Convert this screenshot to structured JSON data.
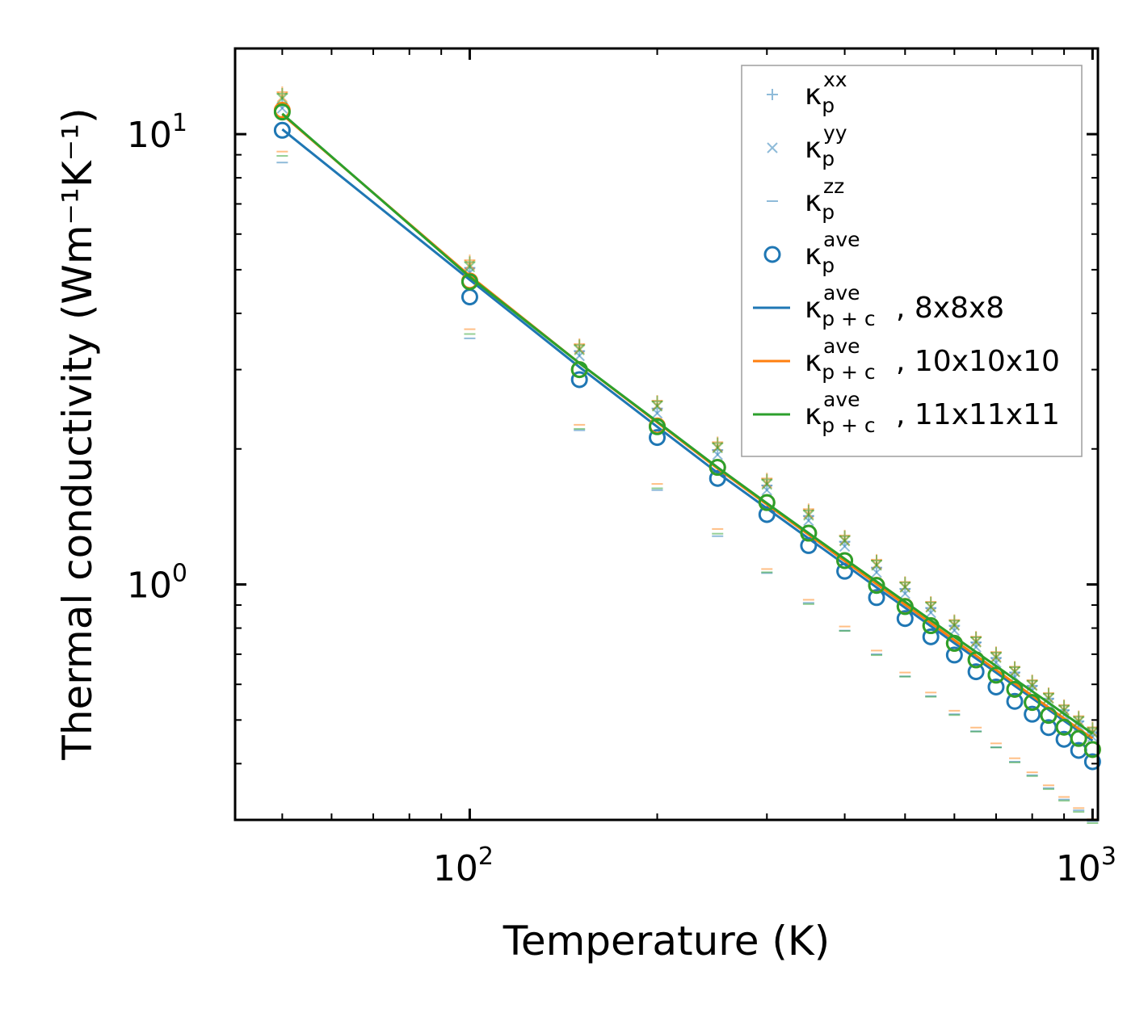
{
  "chart_data": {
    "type": "scatter",
    "title": "",
    "xlabel": "Temperature (K)",
    "ylabel": "Thermal conductivity (Wm⁻¹K⁻¹)",
    "xscale": "log",
    "yscale": "log",
    "xlim": [
      42,
      1020
    ],
    "ylim": [
      0.3,
      15.5
    ],
    "xticks": [
      {
        "base": "10",
        "exp": "2",
        "value": 100
      },
      {
        "base": "10",
        "exp": "3",
        "value": 1000
      }
    ],
    "yticks": [
      {
        "base": "10",
        "exp": "0",
        "value": 1
      },
      {
        "base": "10",
        "exp": "1",
        "value": 10
      }
    ],
    "legend_position": "upper right",
    "colors": {
      "blue": "#1f77b4",
      "orange": "#ff7f0e",
      "green": "#2ca02c"
    },
    "x": [
      50,
      100,
      150,
      200,
      250,
      300,
      350,
      400,
      450,
      500,
      550,
      600,
      650,
      700,
      750,
      800,
      850,
      900,
      950,
      1000
    ],
    "series": [
      {
        "name": "8x8x8",
        "color": "#1f77b4",
        "ave": [
          10.2,
          4.35,
          2.85,
          2.12,
          1.72,
          1.43,
          1.22,
          1.07,
          0.935,
          0.84,
          0.765,
          0.697,
          0.64,
          0.592,
          0.55,
          0.515,
          0.481,
          0.453,
          0.428,
          0.404
        ],
        "xx": [
          11.7,
          5.05,
          3.3,
          2.46,
          1.99,
          1.66,
          1.42,
          1.245,
          1.09,
          0.978,
          0.887,
          0.81,
          0.744,
          0.687,
          0.638,
          0.596,
          0.558,
          0.526,
          0.497,
          0.47
        ],
        "zz": [
          8.65,
          3.52,
          2.2,
          1.62,
          1.28,
          1.06,
          0.91,
          0.79,
          0.7,
          0.625,
          0.565,
          0.515,
          0.472,
          0.435,
          0.404,
          0.377,
          0.353,
          0.333,
          0.315,
          0.298
        ],
        "fit": [
          10.25,
          4.75,
          3.04,
          2.24,
          1.77,
          1.475,
          1.265,
          1.108,
          0.985,
          0.888,
          0.808,
          0.741,
          0.685,
          0.637,
          0.595,
          0.559,
          0.527,
          0.498,
          0.473,
          0.45
        ]
      },
      {
        "name": "10x10x10",
        "color": "#ff7f0e",
        "ave": [
          11.3,
          4.72,
          3.0,
          2.25,
          1.82,
          1.52,
          1.3,
          1.13,
          0.996,
          0.894,
          0.81,
          0.74,
          0.68,
          0.629,
          0.585,
          0.547,
          0.512,
          0.482,
          0.455,
          0.43
        ],
        "xx": [
          12.4,
          5.25,
          3.42,
          2.56,
          2.07,
          1.72,
          1.47,
          1.285,
          1.135,
          1.013,
          0.915,
          0.834,
          0.766,
          0.708,
          0.657,
          0.613,
          0.574,
          0.54,
          0.51,
          0.482
        ],
        "zz": [
          9.3,
          3.75,
          2.3,
          1.7,
          1.35,
          1.1,
          0.94,
          0.82,
          0.725,
          0.648,
          0.585,
          0.533,
          0.489,
          0.451,
          0.418,
          0.389,
          0.364,
          0.343,
          0.324,
          0.306
        ],
        "fit": [
          11.05,
          4.85,
          3.1,
          2.29,
          1.81,
          1.505,
          1.29,
          1.128,
          1.002,
          0.902,
          0.821,
          0.752,
          0.695,
          0.646,
          0.603,
          0.566,
          0.533,
          0.504,
          0.478,
          0.455
        ]
      },
      {
        "name": "11x11x11",
        "color": "#2ca02c",
        "ave": [
          11.2,
          4.7,
          3.0,
          2.24,
          1.82,
          1.52,
          1.3,
          1.13,
          0.995,
          0.893,
          0.81,
          0.74,
          0.68,
          0.629,
          0.585,
          0.547,
          0.512,
          0.482,
          0.455,
          0.43
        ],
        "xx": [
          12.3,
          5.2,
          3.4,
          2.55,
          2.06,
          1.71,
          1.46,
          1.28,
          1.13,
          1.01,
          0.912,
          0.831,
          0.763,
          0.705,
          0.655,
          0.611,
          0.572,
          0.538,
          0.508,
          0.48
        ],
        "zz": [
          9.25,
          3.72,
          2.29,
          1.69,
          1.34,
          1.1,
          0.935,
          0.815,
          0.72,
          0.645,
          0.582,
          0.53,
          0.487,
          0.449,
          0.416,
          0.388,
          0.363,
          0.342,
          0.323,
          0.305
        ],
        "fit": [
          11.1,
          4.82,
          3.1,
          2.3,
          1.82,
          1.515,
          1.3,
          1.14,
          1.015,
          0.915,
          0.833,
          0.765,
          0.708,
          0.659,
          0.616,
          0.579,
          0.546,
          0.516,
          0.49,
          0.466
        ]
      }
    ],
    "legend": [
      {
        "symbol": "κ",
        "sub": "p",
        "sup": "xx",
        "suffix": "",
        "marker": "plus"
      },
      {
        "symbol": "κ",
        "sub": "p",
        "sup": "yy",
        "suffix": "",
        "marker": "x"
      },
      {
        "symbol": "κ",
        "sub": "p",
        "sup": "zz",
        "suffix": "",
        "marker": "dash"
      },
      {
        "symbol": "κ",
        "sub": "p",
        "sup": "ave",
        "suffix": "",
        "marker": "circle"
      },
      {
        "symbol": "κ",
        "sub": "p + c",
        "sup": "ave",
        "suffix": ", 8x8x8",
        "marker": "line",
        "color": "#1f77b4"
      },
      {
        "symbol": "κ",
        "sub": "p + c",
        "sup": "ave",
        "suffix": ", 10x10x10",
        "marker": "line",
        "color": "#ff7f0e"
      },
      {
        "symbol": "κ",
        "sub": "p + c",
        "sup": "ave",
        "suffix": ", 11x11x11",
        "marker": "line",
        "color": "#2ca02c"
      }
    ]
  }
}
